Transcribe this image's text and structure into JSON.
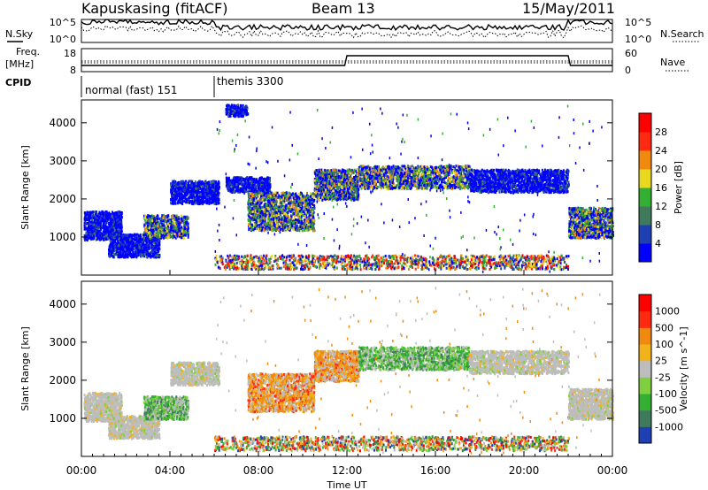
{
  "header": {
    "station": "Kapuskasing (fitACF)",
    "beam": "Beam 13",
    "date": "15/May/2011"
  },
  "nsky_panel": {
    "left_label": "N.Sky",
    "right_label": "N.Search",
    "left_ticks": [
      "10^5",
      "10^0"
    ],
    "right_ticks": [
      "10^5",
      "10^0"
    ]
  },
  "freq_panel": {
    "left_label_1": "Freq.",
    "left_label_2": "[MHz]",
    "right_label": "Nave",
    "left_ticks": [
      "18",
      "8"
    ],
    "right_ticks": [
      "60",
      "0"
    ]
  },
  "cpid": {
    "label": "CPID",
    "segments": [
      {
        "name": "normal (fast) 151",
        "start_hour": 0,
        "end_hour": 6
      },
      {
        "name": "themis 3300",
        "start_hour": 6,
        "end_hour": 24
      }
    ]
  },
  "chart_data": [
    {
      "type": "heatmap",
      "parameter": "power",
      "xlabel": "Time UT",
      "ylabel": "Slant Range [km]",
      "xlim": [
        0,
        24
      ],
      "ylim": [
        0,
        4600
      ],
      "yticks": [
        "1000",
        "2000",
        "3000",
        "4000"
      ],
      "colorbar": {
        "label": "Power [dB]",
        "ticks": [
          "4",
          "8",
          "12",
          "16",
          "20",
          "24",
          "28"
        ],
        "colors": [
          "#0000ff",
          "#1f3fb5",
          "#3f7a5c",
          "#33b033",
          "#e8d81f",
          "#f08a0f",
          "#ff2a10",
          "#ff0000"
        ]
      },
      "echo_regions": [
        {
          "t_start": 0.1,
          "t_end": 1.8,
          "r_low": 950,
          "r_high": 1700,
          "level": "low"
        },
        {
          "t_start": 1.2,
          "t_end": 3.5,
          "r_low": 500,
          "r_high": 1100,
          "level": "low"
        },
        {
          "t_start": 2.8,
          "t_end": 4.8,
          "r_low": 1000,
          "r_high": 1600,
          "level": "mid"
        },
        {
          "t_start": 4.0,
          "t_end": 6.2,
          "r_low": 1900,
          "r_high": 2500,
          "level": "low"
        },
        {
          "t_start": 6.5,
          "t_end": 8.5,
          "r_low": 2200,
          "r_high": 2600,
          "level": "low"
        },
        {
          "t_start": 6.5,
          "t_end": 7.5,
          "r_low": 4200,
          "r_high": 4500,
          "level": "low"
        },
        {
          "t_start": 7.5,
          "t_end": 10.5,
          "r_low": 1200,
          "r_high": 2200,
          "level": "mid"
        },
        {
          "t_start": 10.5,
          "t_end": 12.5,
          "r_low": 2000,
          "r_high": 2800,
          "level": "mid"
        },
        {
          "t_start": 12.5,
          "t_end": 17.5,
          "r_low": 2300,
          "r_high": 2900,
          "level": "mid"
        },
        {
          "t_start": 17.5,
          "t_end": 22.0,
          "r_low": 2200,
          "r_high": 2800,
          "level": "low"
        },
        {
          "t_start": 22.0,
          "t_end": 24.0,
          "r_low": 1000,
          "r_high": 1800,
          "level": "mid"
        },
        {
          "t_start": 6.0,
          "t_end": 22.0,
          "r_low": 180,
          "r_high": 550,
          "level": "mixed"
        }
      ]
    },
    {
      "type": "heatmap",
      "parameter": "velocity",
      "xlabel": "Time UT",
      "ylabel": "Slant Range [km]",
      "xlim": [
        0,
        24
      ],
      "ylim": [
        0,
        4600
      ],
      "yticks": [
        "1000",
        "2000",
        "3000",
        "4000"
      ],
      "colorbar": {
        "label": "Velocity [m s^-1]",
        "ticks": [
          "1000",
          "500",
          "100",
          "25",
          "-25",
          "-100",
          "-500",
          "-1000"
        ],
        "colors": [
          "#1f3fb5",
          "#3f7a5c",
          "#33b033",
          "#7fd040",
          "#bdbdbd",
          "#f2b21c",
          "#f08a0f",
          "#ff2a10",
          "#ff0000"
        ]
      },
      "echo_regions": [
        {
          "t_start": 0.1,
          "t_end": 1.8,
          "r_low": 950,
          "r_high": 1700,
          "level": "gray"
        },
        {
          "t_start": 1.2,
          "t_end": 3.5,
          "r_low": 500,
          "r_high": 1100,
          "level": "gray"
        },
        {
          "t_start": 2.8,
          "t_end": 4.8,
          "r_low": 1000,
          "r_high": 1600,
          "level": "towards"
        },
        {
          "t_start": 4.0,
          "t_end": 6.2,
          "r_low": 1900,
          "r_high": 2500,
          "level": "gray"
        },
        {
          "t_start": 7.5,
          "t_end": 10.5,
          "r_low": 1200,
          "r_high": 2200,
          "level": "away"
        },
        {
          "t_start": 10.5,
          "t_end": 12.5,
          "r_low": 2000,
          "r_high": 2800,
          "level": "away"
        },
        {
          "t_start": 12.5,
          "t_end": 17.5,
          "r_low": 2300,
          "r_high": 2900,
          "level": "towards"
        },
        {
          "t_start": 17.5,
          "t_end": 22.0,
          "r_low": 2200,
          "r_high": 2800,
          "level": "gray"
        },
        {
          "t_start": 22.0,
          "t_end": 24.0,
          "r_low": 1000,
          "r_high": 1800,
          "level": "gray"
        },
        {
          "t_start": 6.0,
          "t_end": 22.0,
          "r_low": 180,
          "r_high": 550,
          "level": "mixed"
        }
      ]
    }
  ],
  "time_axis": {
    "label": "Time UT",
    "ticks": [
      "00:00",
      "04:00",
      "08:00",
      "12:00",
      "16:00",
      "20:00",
      "00:00"
    ]
  }
}
